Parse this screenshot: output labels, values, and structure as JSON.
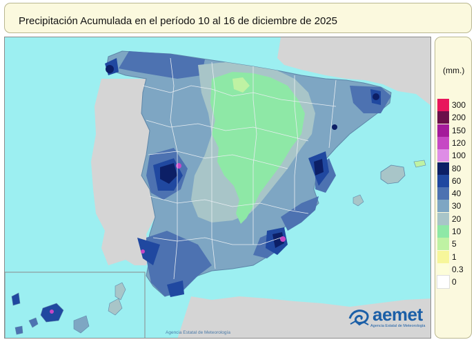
{
  "title": "Precipitación Acumulada en el período 10 al 16 de diciembre de 2025",
  "legend": {
    "unit": "(mm.)",
    "classes": [
      {
        "label": "300",
        "color": "#e8165c"
      },
      {
        "label": "200",
        "color": "#6b0f4a"
      },
      {
        "label": "150",
        "color": "#a41a9a"
      },
      {
        "label": "120",
        "color": "#c648c4"
      },
      {
        "label": "100",
        "color": "#de8de6"
      },
      {
        "label": "80",
        "color": "#0c1f66"
      },
      {
        "label": "60",
        "color": "#2048a0"
      },
      {
        "label": "40",
        "color": "#4d72b1"
      },
      {
        "label": "30",
        "color": "#7ea6c3"
      },
      {
        "label": "20",
        "color": "#a8c5c8"
      },
      {
        "label": "10",
        "color": "#8ee8a6"
      },
      {
        "label": "5",
        "color": "#bff2a3"
      },
      {
        "label": "1",
        "color": "#f7f69a"
      },
      {
        "label": "0.3",
        "color": "#fdfdd9"
      },
      {
        "label": "0",
        "color": "#ffffff"
      }
    ]
  },
  "credit": "Agencia Estatal de Meteorología",
  "logo": {
    "word": "aemet",
    "subtitle": "Agencia Estatal de Meteorología"
  },
  "colors": {
    "sea": "#9ceff1",
    "land_outside": "#d5d5d5",
    "border_lines": "#e9eef2"
  }
}
